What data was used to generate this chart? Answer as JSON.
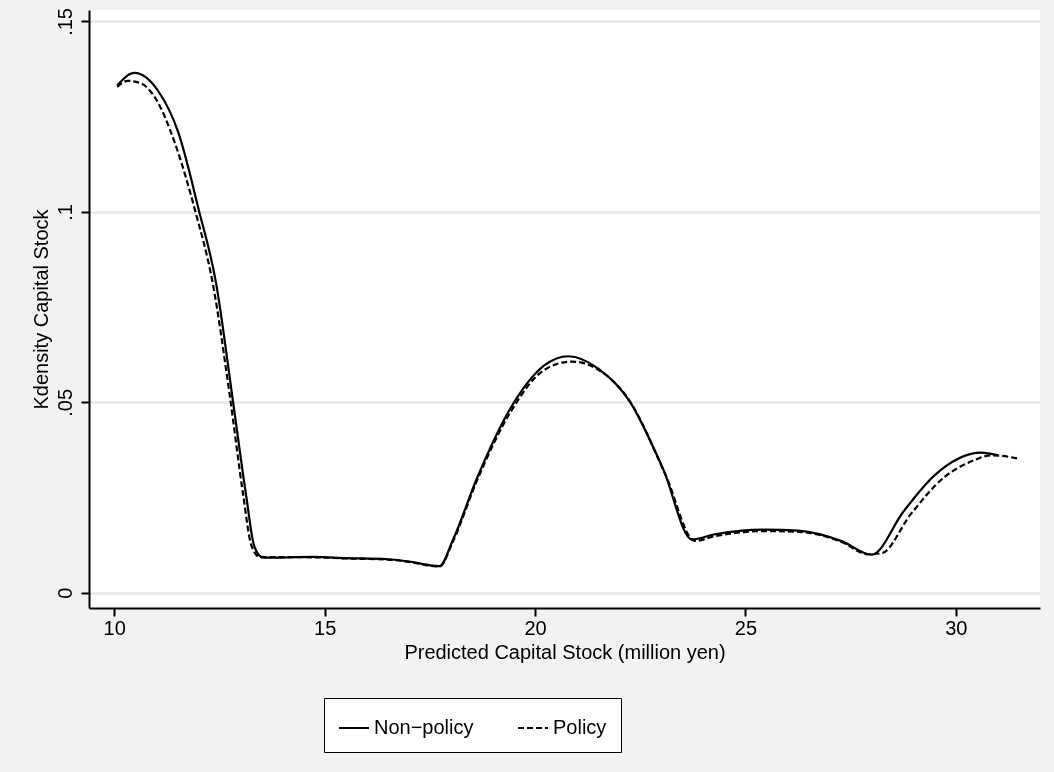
{
  "chart_data": {
    "type": "line",
    "xlabel": "Predicted Capital Stock (million yen)",
    "ylabel": "Kdensity Capital Stock",
    "xlim": [
      9.4,
      32.0
    ],
    "ylim": [
      -0.004,
      0.153
    ],
    "xticks": [
      10,
      15,
      20,
      25,
      30
    ],
    "yticks": [
      0,
      {
        "value": 0.05,
        "label": ".05"
      },
      {
        "value": 0.1,
        "label": ".1"
      },
      {
        "value": 0.15,
        "label": ".15"
      }
    ],
    "grid": "y",
    "legend": "bottom",
    "series": [
      {
        "name": "Non−policy",
        "color": "#000000",
        "line_style": "solid",
        "x": [
          10.07,
          10.48,
          11.04,
          11.53,
          12.0,
          12.42,
          12.82,
          13.14,
          13.33,
          13.54,
          14.75,
          15.5,
          16.5,
          17.0,
          17.73,
          18.05,
          18.61,
          19.42,
          20.22,
          20.79,
          21.51,
          22.24,
          23.04,
          23.73,
          24.25,
          25.46,
          26.26,
          27.3,
          28.0,
          28.76,
          29.48,
          30.6,
          31.0
        ],
        "values": [
          0.1332,
          0.1365,
          0.1318,
          0.1206,
          0.1009,
          0.0813,
          0.0504,
          0.0251,
          0.0121,
          0.0092,
          0.0094,
          0.0091,
          0.0088,
          0.0082,
          0.007,
          0.0139,
          0.0298,
          0.0485,
          0.0597,
          0.0621,
          0.0588,
          0.0504,
          0.0326,
          0.014,
          0.0153,
          0.0166,
          0.0163,
          0.0135,
          0.01,
          0.0214,
          0.0307,
          0.0368,
          0.0361
        ]
      },
      {
        "name": "Policy",
        "color": "#000000",
        "line_style": "dashed",
        "x": [
          10.07,
          10.32,
          10.64,
          10.97,
          11.45,
          11.93,
          12.34,
          12.74,
          13.06,
          13.26,
          13.46,
          14.75,
          15.5,
          16.5,
          17.0,
          17.73,
          18.05,
          18.61,
          19.42,
          20.22,
          20.87,
          21.51,
          22.24,
          23.1,
          23.8,
          24.25,
          25.46,
          26.26,
          27.3,
          27.9,
          28.24,
          28.92,
          29.72,
          30.37,
          30.85,
          31.5
        ],
        "values": [
          0.1328,
          0.1344,
          0.1337,
          0.13,
          0.1178,
          0.1,
          0.0813,
          0.0522,
          0.026,
          0.0124,
          0.0094,
          0.0093,
          0.009,
          0.0087,
          0.0081,
          0.0069,
          0.0135,
          0.0292,
          0.0475,
          0.0585,
          0.0607,
          0.0585,
          0.0505,
          0.031,
          0.0136,
          0.0148,
          0.0162,
          0.016,
          0.0133,
          0.0101,
          0.0104,
          0.0205,
          0.0303,
          0.0345,
          0.0361,
          0.0352
        ]
      }
    ]
  }
}
